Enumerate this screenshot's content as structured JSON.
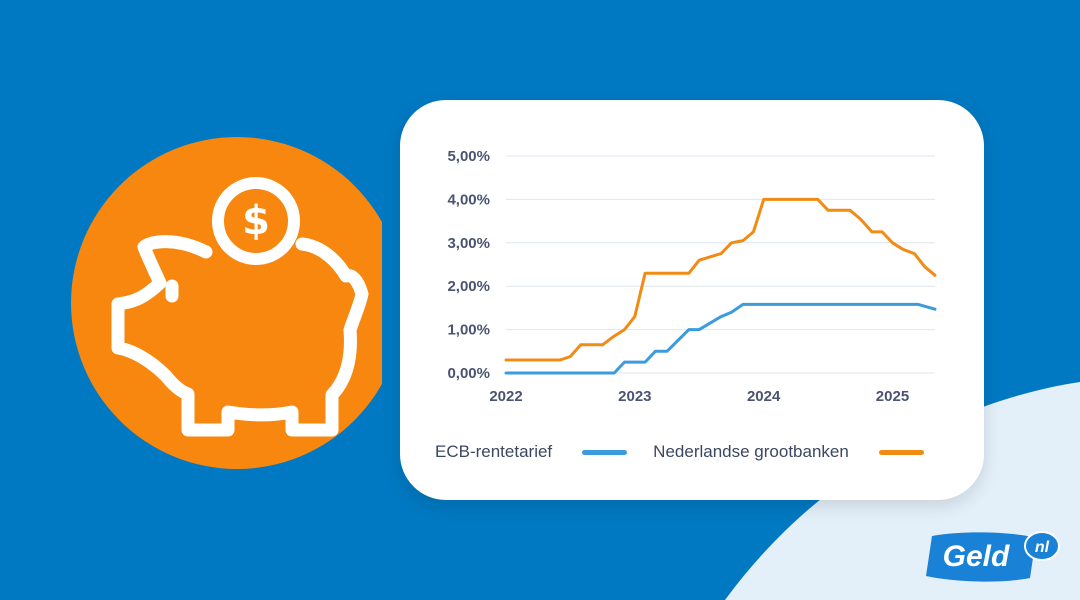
{
  "colors": {
    "background": "#0079c2",
    "accent_light": "#e3eff9",
    "piggy_circle": "#f7870e",
    "ecb_line": "#3b9bdc",
    "bank_line": "#f08c14",
    "grid": "#dfe6ee"
  },
  "icons": [
    "piggy-bank-icon",
    "dollar-coin-icon"
  ],
  "logo": {
    "text": "Geld",
    "suffix": "nl"
  },
  "chart_data": {
    "type": "line",
    "title": "",
    "xlabel": "",
    "ylabel": "",
    "y_ticks": [
      "0,00%",
      "1,00%",
      "2,00%",
      "3,00%",
      "4,00%",
      "5,00%"
    ],
    "x_ticks": [
      "2022",
      "2023",
      "2024",
      "2025"
    ],
    "ylim": [
      0,
      5
    ],
    "xlim": [
      2022,
      2025.33
    ],
    "grid": "horizontal",
    "legend_position": "bottom",
    "series": [
      {
        "name": "ECB-rentetarief",
        "color": "#3b9bdc",
        "points": [
          [
            2022.0,
            0
          ],
          [
            2022.84,
            0
          ],
          [
            2022.92,
            0.25
          ],
          [
            2023.08,
            0.25
          ],
          [
            2023.16,
            0.5
          ],
          [
            2023.25,
            0.5
          ],
          [
            2023.42,
            1.0
          ],
          [
            2023.5,
            1.0
          ],
          [
            2023.67,
            1.3
          ],
          [
            2023.75,
            1.4
          ],
          [
            2023.84,
            1.58
          ],
          [
            2024.0,
            1.58
          ],
          [
            2024.5,
            1.58
          ],
          [
            2025.0,
            1.58
          ],
          [
            2025.2,
            1.58
          ],
          [
            2025.33,
            1.47
          ]
        ]
      },
      {
        "name": "Nederlandse grootbanken",
        "color": "#f08c14",
        "points": [
          [
            2022.0,
            0.3
          ],
          [
            2022.42,
            0.3
          ],
          [
            2022.5,
            0.38
          ],
          [
            2022.58,
            0.65
          ],
          [
            2022.75,
            0.65
          ],
          [
            2022.84,
            0.85
          ],
          [
            2022.92,
            1.0
          ],
          [
            2023.0,
            1.3
          ],
          [
            2023.08,
            2.3
          ],
          [
            2023.42,
            2.3
          ],
          [
            2023.5,
            2.6
          ],
          [
            2023.67,
            2.75
          ],
          [
            2023.75,
            3.0
          ],
          [
            2023.84,
            3.05
          ],
          [
            2023.92,
            3.25
          ],
          [
            2024.0,
            4.0
          ],
          [
            2024.42,
            4.0
          ],
          [
            2024.5,
            3.75
          ],
          [
            2024.67,
            3.75
          ],
          [
            2024.75,
            3.55
          ],
          [
            2024.84,
            3.25
          ],
          [
            2024.92,
            3.25
          ],
          [
            2025.0,
            3.0
          ],
          [
            2025.08,
            2.85
          ],
          [
            2025.17,
            2.75
          ],
          [
            2025.25,
            2.45
          ],
          [
            2025.33,
            2.25
          ]
        ]
      }
    ]
  }
}
